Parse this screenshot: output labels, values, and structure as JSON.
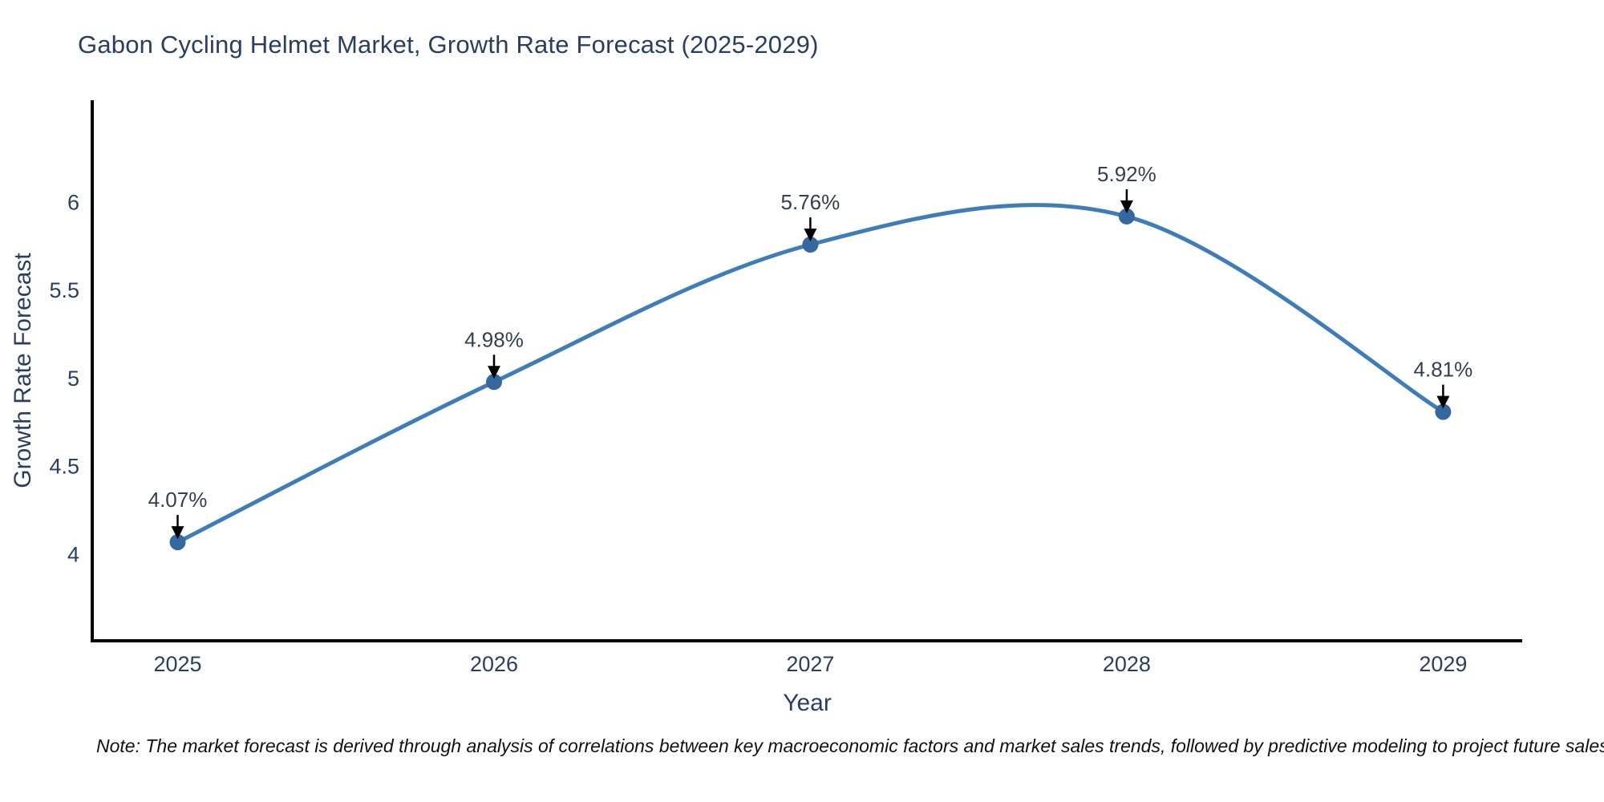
{
  "title": "Gabon Cycling Helmet Market, Growth Rate Forecast (2025-2029)",
  "note": "Note: The market forecast is derived through analysis of correlations between key macroeconomic factors and market sales trends, followed by predictive modeling to project future sales",
  "chart_data": {
    "type": "line",
    "title": "Gabon Cycling Helmet Market, Growth Rate Forecast (2025-2029)",
    "xlabel": "Year",
    "ylabel": "Growth Rate Forecast",
    "x": [
      2025,
      2026,
      2027,
      2028,
      2029
    ],
    "values": [
      4.07,
      4.98,
      5.76,
      5.92,
      4.81
    ],
    "point_labels": [
      "4.07%",
      "4.98%",
      "5.76%",
      "5.92%",
      "4.81%"
    ],
    "x_tick_labels": [
      "2025",
      "2026",
      "2027",
      "2028",
      "2029"
    ],
    "y_ticks": [
      4,
      4.5,
      5,
      5.5,
      6
    ],
    "y_tick_labels": [
      "4",
      "4.5",
      "5",
      "5.5",
      "6"
    ],
    "xlim": [
      2024.73,
      2029.25
    ],
    "ylim": [
      3.51,
      6.58
    ],
    "line_shape": "spline",
    "grid": false,
    "legend": "none",
    "colors": {
      "line": "#3f7db8",
      "marker": "#35689f",
      "axis": "#000000",
      "tick_text": "#2a3f5f",
      "annotation": "#333f4d",
      "annotation_arrow": "#000000",
      "title_text": "#2a3f5f",
      "note_text": "#111111",
      "background": "#ffffff"
    }
  }
}
